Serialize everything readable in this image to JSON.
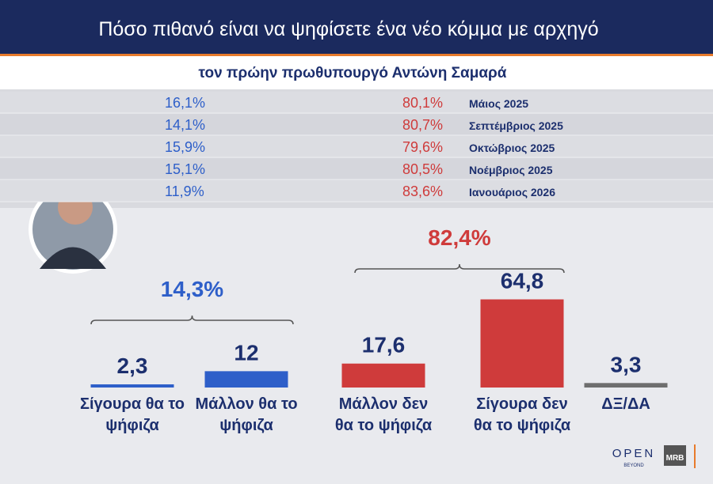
{
  "chart_data": {
    "type": "bar",
    "title": "Πόσο πιθανό είναι να ψηφίσετε ένα νέο κόμμα με αρχηγό",
    "subtitle": "τον πρώην πρωθυπουργό Αντώνη Σαμαρά",
    "categories": [
      "Σίγουρα θα το\nψήφιζα",
      "Μάλλον θα το\nψήφιζα",
      "Μάλλον δεν\nθα το ψήφιζα",
      "Σίγουρα δεν\nθα το ψήφιζα",
      "ΔΞ/ΔΑ"
    ],
    "values": [
      2.3,
      12,
      17.6,
      64.8,
      3.3
    ],
    "value_labels": [
      "2,3",
      "12",
      "17,6",
      "64,8",
      "3,3"
    ],
    "colors": [
      "#2e5fc9",
      "#2e5fc9",
      "#cf3b3b",
      "#cf3b3b",
      "#6e6e6e"
    ],
    "groups": [
      {
        "value": 14.3,
        "value_label": "14,3%",
        "color": "#2e5fc9"
      },
      {
        "value": 82.4,
        "value_label": "82,4%",
        "color": "#cf3b3b"
      }
    ]
  },
  "history": {
    "rows": [
      [
        "16,1%",
        "80,1%",
        "Μάιος 2025"
      ],
      [
        "14,1%",
        "80,7%",
        "Σεπτέμβριος 2025"
      ],
      [
        "15,9%",
        "79,6%",
        "Οκτώβριος 2025"
      ],
      [
        "15,1%",
        "80,5%",
        "Νοέμβριος 2025"
      ],
      [
        "11,9%",
        "83,6%",
        "Ιανουάριος 2026"
      ]
    ]
  },
  "footer": {
    "logo": "OPEN",
    "logo_sub": "BEYOND",
    "pollster": "MRB"
  }
}
